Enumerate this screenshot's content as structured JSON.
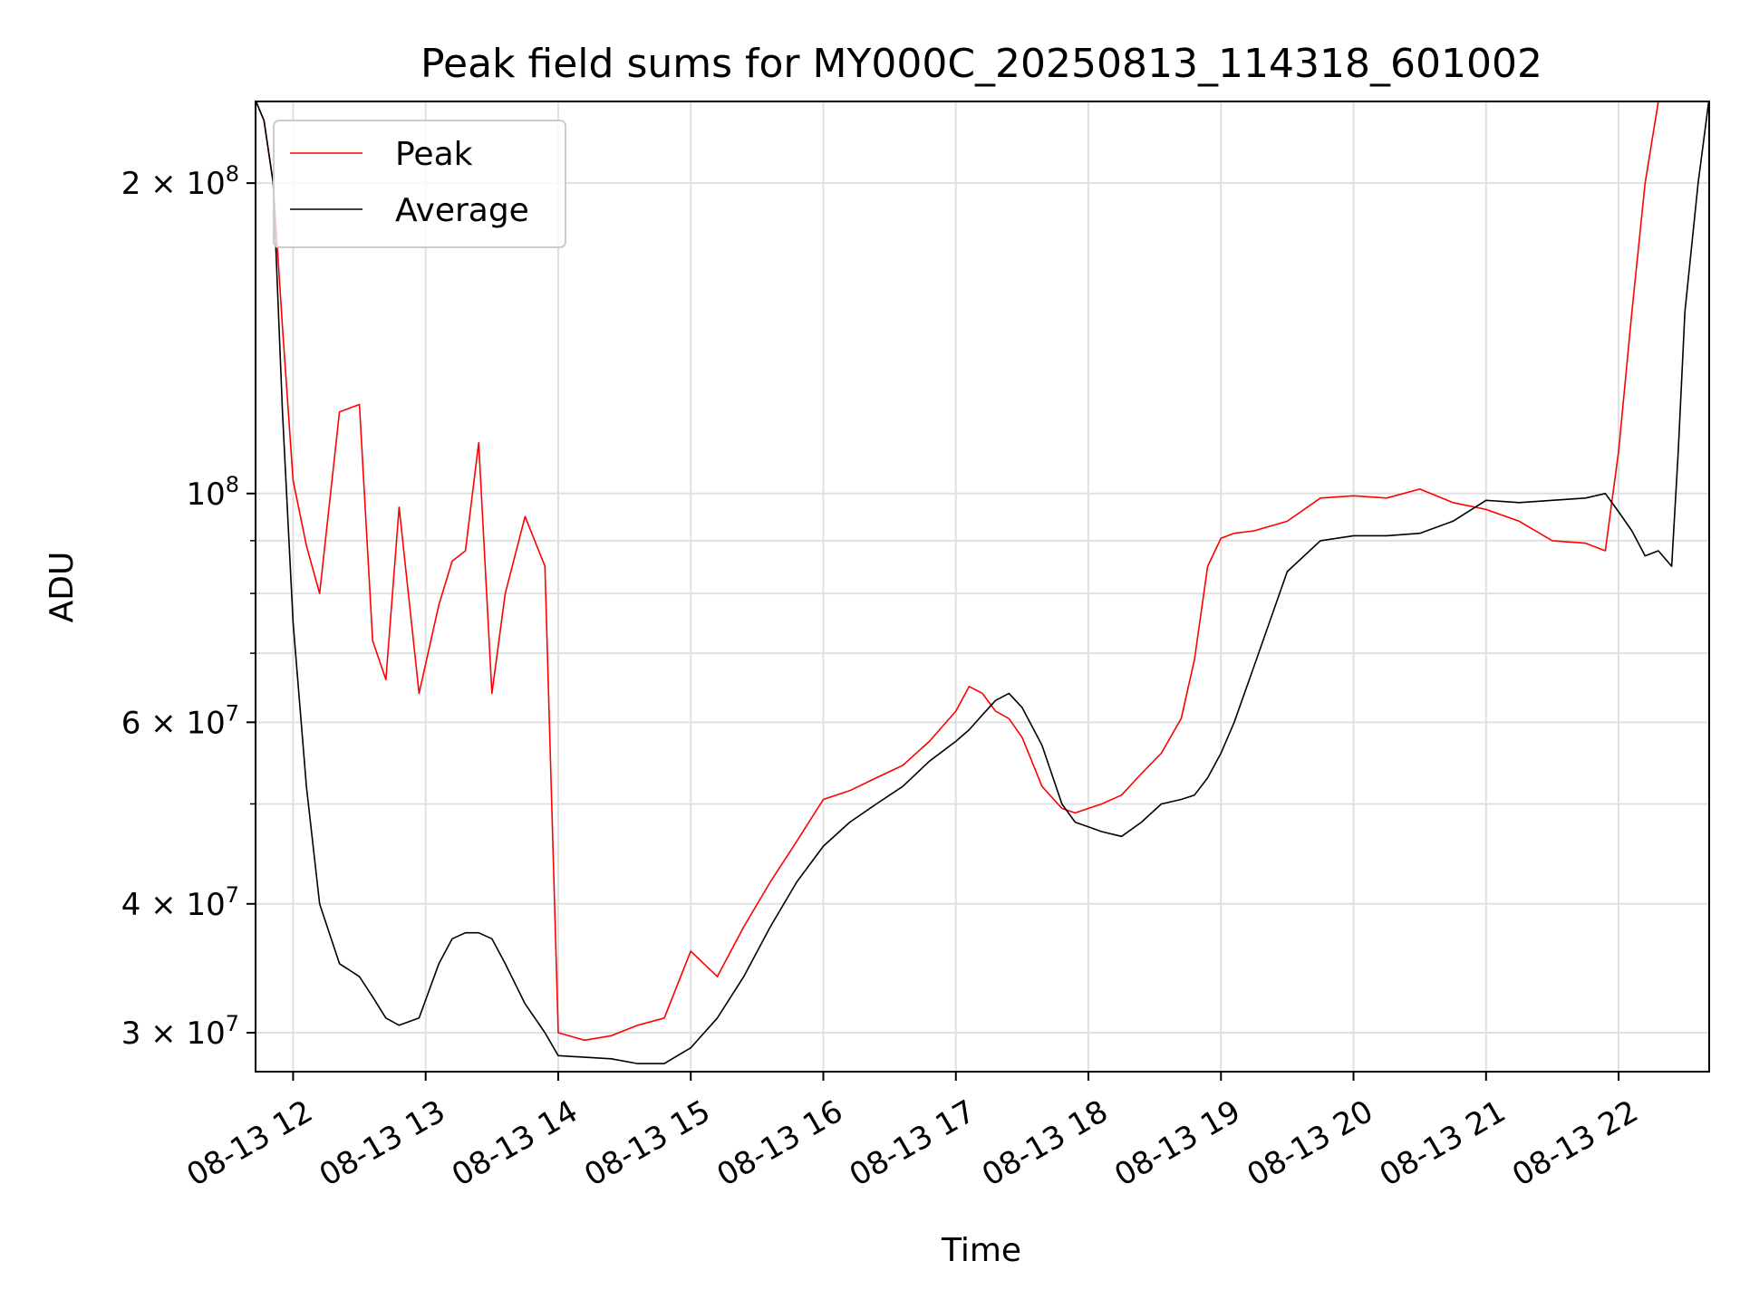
{
  "chart_data": {
    "type": "line",
    "title": "Peak field sums for MY000C_20250813_114318_601002",
    "xlabel": "Time",
    "ylabel": "ADU",
    "yscale": "log",
    "ylim": [
      27500000,
      240000000
    ],
    "xlim": [
      "08-13 11:43",
      "08-13 22:41"
    ],
    "grid": true,
    "legend_position": "upper-left",
    "x_ticks": [
      "08-13 12",
      "08-13 13",
      "08-13 14",
      "08-13 15",
      "08-13 16",
      "08-13 17",
      "08-13 18",
      "08-13 19",
      "08-13 20",
      "08-13 21",
      "08-13 22"
    ],
    "y_major_ticks": [
      {
        "value": 30000000,
        "mantissa": "3",
        "base": "10",
        "exp": "7"
      },
      {
        "value": 40000000,
        "mantissa": "4",
        "base": "10",
        "exp": "7"
      },
      {
        "value": 60000000,
        "mantissa": "6",
        "base": "10",
        "exp": "7"
      },
      {
        "value": 100000000,
        "mantissa": "",
        "base": "10",
        "exp": "8"
      },
      {
        "value": 200000000,
        "mantissa": "2",
        "base": "10",
        "exp": "8"
      }
    ],
    "y_minor_ticks": [
      50000000,
      70000000,
      80000000,
      90000000
    ],
    "times_of_day_h": [
      11.72,
      11.78,
      11.85,
      11.92,
      12.0,
      12.1,
      12.2,
      12.35,
      12.5,
      12.6,
      12.7,
      12.8,
      12.95,
      13.1,
      13.2,
      13.3,
      13.4,
      13.5,
      13.6,
      13.75,
      13.9,
      14.0,
      14.2,
      14.4,
      14.6,
      14.8,
      15.0,
      15.2,
      15.4,
      15.6,
      15.8,
      16.0,
      16.2,
      16.4,
      16.6,
      16.8,
      17.0,
      17.1,
      17.2,
      17.3,
      17.4,
      17.5,
      17.65,
      17.8,
      17.9,
      18.0,
      18.1,
      18.25,
      18.4,
      18.55,
      18.7,
      18.8,
      18.9,
      19.0,
      19.1,
      19.25,
      19.5,
      19.75,
      20.0,
      20.25,
      20.5,
      20.75,
      21.0,
      21.25,
      21.5,
      21.75,
      21.9,
      22.0,
      22.1,
      22.2,
      22.3,
      22.4,
      22.45,
      22.5,
      22.6,
      22.68
    ],
    "series": [
      {
        "name": "Average",
        "color": "#000000",
        "values": [
          240000000,
          230000000,
          200000000,
          120000000,
          75000000,
          52000000,
          40000000,
          35000000,
          34000000,
          32500000,
          31000000,
          30500000,
          31000000,
          35000000,
          37000000,
          37500000,
          37500000,
          37000000,
          35000000,
          32000000,
          30000000,
          28500000,
          28400000,
          28300000,
          28000000,
          28000000,
          29000000,
          31000000,
          34000000,
          38000000,
          42000000,
          45500000,
          48000000,
          50000000,
          52000000,
          55000000,
          57500000,
          59000000,
          61000000,
          63000000,
          64000000,
          62000000,
          57000000,
          50000000,
          48000000,
          47500000,
          47000000,
          46500000,
          48000000,
          50000000,
          50500000,
          51000000,
          53000000,
          56000000,
          60000000,
          68000000,
          84000000,
          90000000,
          91000000,
          91000000,
          91500000,
          94000000,
          98500000,
          98000000,
          98500000,
          99000000,
          100000000,
          96000000,
          92000000,
          87000000,
          88000000,
          85000000,
          110000000,
          150000000,
          200000000,
          240000000
        ]
      },
      {
        "name": "Peak",
        "color": "#ff0000",
        "values": [
          240000000,
          230000000,
          200000000,
          145000000,
          103000000,
          89000000,
          80000000,
          120000000,
          122000000,
          72000000,
          66000000,
          97000000,
          64000000,
          78000000,
          86000000,
          88000000,
          112000000,
          64000000,
          80000000,
          95000000,
          85000000,
          30000000,
          29500000,
          29800000,
          30500000,
          31000000,
          36000000,
          34000000,
          38000000,
          42000000,
          46000000,
          50500000,
          51500000,
          53000000,
          54500000,
          57500000,
          61500000,
          65000000,
          64000000,
          61500000,
          60500000,
          58000000,
          52000000,
          49500000,
          49000000,
          49500000,
          50000000,
          51000000,
          53500000,
          56000000,
          60500000,
          69000000,
          85000000,
          90500000,
          91500000,
          92000000,
          94000000,
          99000000,
          99500000,
          99000000,
          101000000,
          98000000,
          96500000,
          94000000,
          90000000,
          89500000,
          88000000,
          110000000,
          150000000,
          200000000,
          240000000,
          240000000,
          240000000,
          240000000,
          240000000,
          240000000
        ]
      }
    ],
    "legend": [
      {
        "label": "Peak",
        "color": "#ff0000"
      },
      {
        "label": "Average",
        "color": "#000000"
      }
    ]
  }
}
